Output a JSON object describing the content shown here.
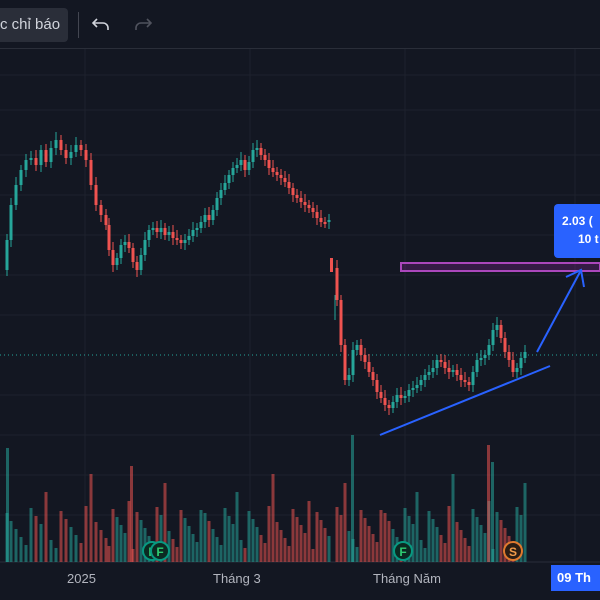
{
  "toolbar": {
    "indicators_label": "c chỉ báo",
    "undo_icon": "undo-icon",
    "redo_icon": "redo-icon"
  },
  "x_axis": {
    "labels": [
      "2025",
      "Tháng 3",
      "Tháng Năm"
    ],
    "current_time": "09 Th"
  },
  "price_annotation": {
    "line1": "2.03 (",
    "line2": "10 t"
  },
  "markers": [
    {
      "label": "F"
    },
    {
      "label": "F"
    },
    {
      "label": "F"
    },
    {
      "label": "S"
    }
  ],
  "colors": {
    "background": "#131722",
    "up": "#26a69a",
    "down": "#ef5350",
    "trendline": "#2962ff",
    "target_zone": "#9c27b0"
  }
}
